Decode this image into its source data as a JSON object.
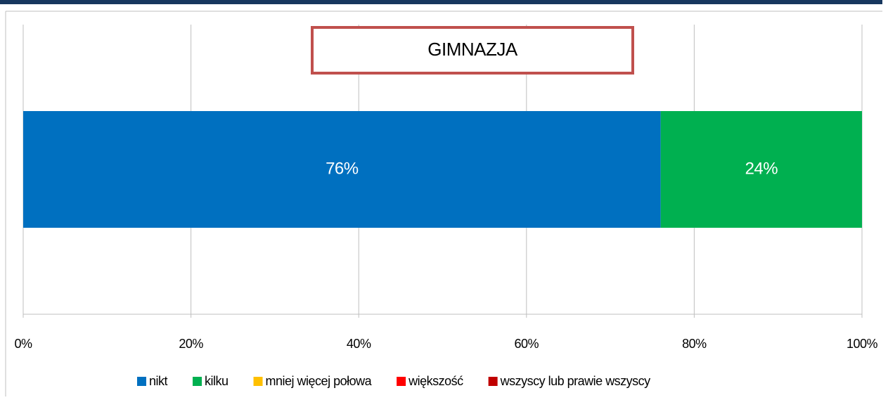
{
  "chart_data": {
    "type": "stacked_barh",
    "title": "GIMNAZJA",
    "series": [
      {
        "name": "nikt",
        "color": "#0070c0",
        "values": [
          76
        ],
        "value_labels": [
          "76%"
        ]
      },
      {
        "name": "kilku",
        "color": "#00b050",
        "values": [
          24
        ],
        "value_labels": [
          "24%"
        ]
      },
      {
        "name": "mniej więcej połowa",
        "color": "#ffc000",
        "values": [
          0
        ]
      },
      {
        "name": "większość",
        "color": "#ff0000",
        "values": [
          0
        ]
      },
      {
        "name": "wszyscy lub prawie wszyscy",
        "color": "#c00000",
        "values": [
          0
        ]
      }
    ],
    "xlim": [
      0,
      100
    ],
    "xticks": [
      {
        "value": 0,
        "label": "0%"
      },
      {
        "value": 20,
        "label": "20%"
      },
      {
        "value": 40,
        "label": "40%"
      },
      {
        "value": 60,
        "label": "60%"
      },
      {
        "value": 80,
        "label": "80%"
      },
      {
        "value": 100,
        "label": "100%"
      }
    ],
    "grid": true,
    "legend": "bottom"
  }
}
